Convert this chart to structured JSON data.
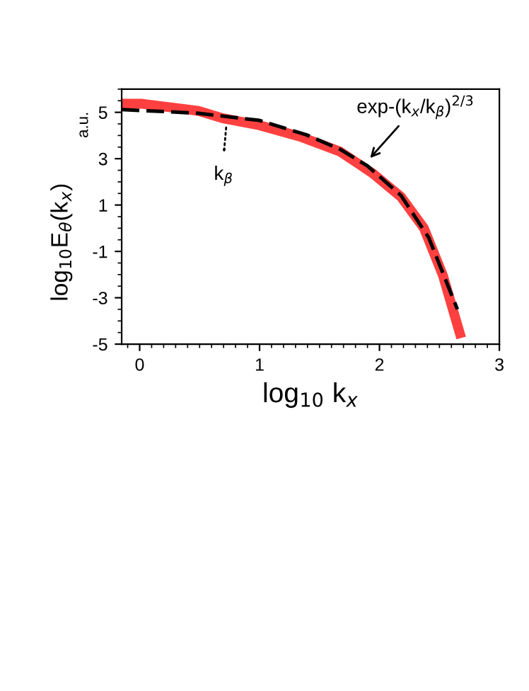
{
  "chart_data": {
    "type": "line",
    "xlabel": "log$_{10}$ k$_{x}$",
    "ylabel": "log$_{10}$E$_{θ}$(k$_{x}$)",
    "series": [
      {
        "color": "#ff4040",
        "line_style": "solid",
        "x": [
          -0.15,
          0.02,
          0.49,
          0.69,
          1.0,
          1.35,
          1.67,
          1.94,
          2.18,
          2.37,
          2.53,
          2.67
        ],
        "values": [
          5.37,
          5.37,
          5.06,
          4.75,
          4.44,
          3.93,
          3.31,
          2.38,
          1.35,
          0.01,
          -2.05,
          -4.53
        ]
      },
      {
        "color": "#000000",
        "line_style": "dashed",
        "x": [
          -0.15,
          0.49,
          1.0,
          1.39,
          1.67,
          1.9,
          2.18,
          2.41,
          2.65
        ],
        "values": [
          5.12,
          4.96,
          4.65,
          4.03,
          3.41,
          2.69,
          1.41,
          -0.4,
          -3.5
        ]
      }
    ],
    "annotations": [
      "a.u.",
      {
        "text": "exp-(k$_{x}$/k$_{β}$)$^{2/3}$",
        "x": 1.9,
        "y": 2.9
      },
      {
        "text": "k$_{β}$",
        "x": 0.7,
        "y": 4.8
      }
    ],
    "xlim": [
      -0.15,
      3
    ],
    "ylim": [
      -5,
      6
    ],
    "xticks": [
      0,
      1,
      2,
      3
    ],
    "yticks": [
      5,
      3,
      1,
      -1,
      -3,
      -5
    ],
    "grid": false,
    "marker": "none"
  }
}
